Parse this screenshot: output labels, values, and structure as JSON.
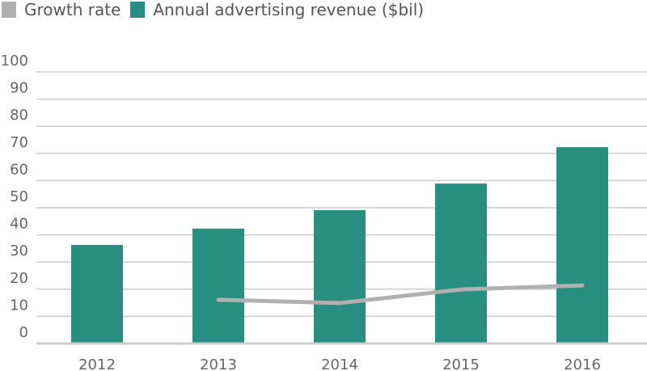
{
  "chart_data": {
    "type": "bar",
    "categories": [
      "2012",
      "2013",
      "2014",
      "2015",
      "2016"
    ],
    "series": [
      {
        "name": "Growth rate",
        "kind": "line",
        "color": "#b0b0b0",
        "values": [
          null,
          16.1,
          14.9,
          19.9,
          21.4
        ]
      },
      {
        "name": "Annual advertising revenue ($bil)",
        "kind": "bar",
        "color": "#268f80",
        "values": [
          36.3,
          42.3,
          49.1,
          58.9,
          72.3
        ]
      }
    ],
    "yticks": [
      "0",
      "10",
      "20",
      "30",
      "40",
      "50",
      "60",
      "70",
      "80",
      "90",
      "100"
    ],
    "ylim": [
      0,
      100
    ],
    "grid": true,
    "legend": "top-left",
    "title": "",
    "xlabel": "",
    "ylabel": ""
  }
}
